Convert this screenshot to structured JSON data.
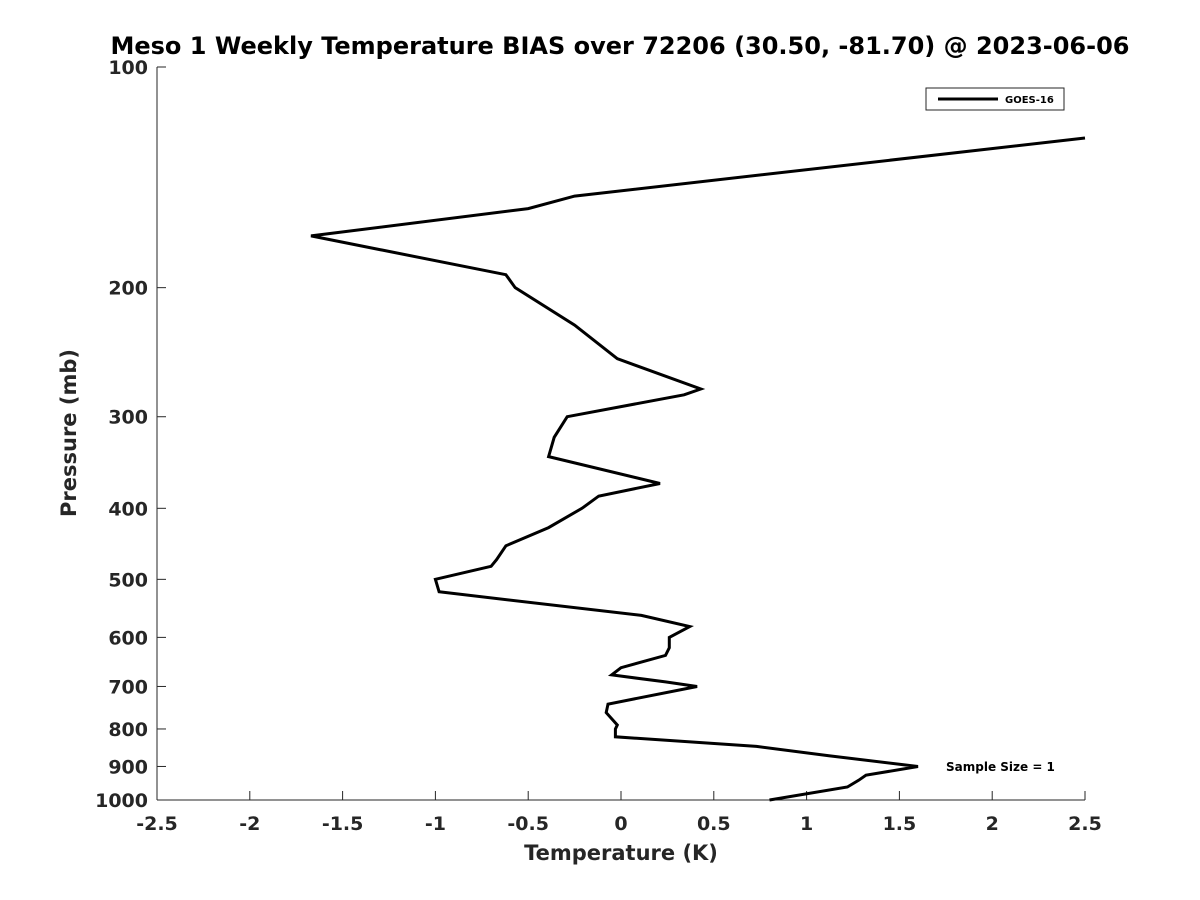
{
  "chart_data": {
    "type": "line",
    "title": "Meso 1 Weekly Temperature BIAS over 72206 (30.50, -81.70) @ 2023-06-06",
    "xlabel": "Temperature (K)",
    "ylabel": "Pressure (mb)",
    "xlim": [
      -2.5,
      2.5
    ],
    "ylim": [
      100,
      1000
    ],
    "yscale": "log",
    "yreversed": true,
    "x_ticks": [
      "-2.5",
      "-2",
      "-1.5",
      "-1",
      "-0.5",
      "0",
      "0.5",
      "1",
      "1.5",
      "2",
      "2.5"
    ],
    "y_ticks": [
      "100",
      "200",
      "300",
      "400",
      "500",
      "600",
      "700",
      "800",
      "900",
      "1000"
    ],
    "grid": false,
    "legend_position": "top-right",
    "annotation": "Sample Size = 1",
    "series": [
      {
        "name": "GOES-16",
        "color": "#000000",
        "points": [
          [
            2.5,
            125
          ],
          [
            -0.25,
            150
          ],
          [
            -0.5,
            156
          ],
          [
            -1.67,
            170
          ],
          [
            -0.62,
            192
          ],
          [
            -0.57,
            200
          ],
          [
            -0.25,
            225
          ],
          [
            -0.02,
            250
          ],
          [
            0.43,
            275
          ],
          [
            0.34,
            280
          ],
          [
            -0.29,
            300
          ],
          [
            -0.36,
            320
          ],
          [
            -0.39,
            340
          ],
          [
            0.21,
            370
          ],
          [
            -0.12,
            385
          ],
          [
            -0.21,
            400
          ],
          [
            -0.39,
            425
          ],
          [
            -0.62,
            450
          ],
          [
            -0.67,
            470
          ],
          [
            -0.7,
            480
          ],
          [
            -1.0,
            500
          ],
          [
            -0.98,
            520
          ],
          [
            0.11,
            560
          ],
          [
            0.37,
            580
          ],
          [
            0.26,
            600
          ],
          [
            0.26,
            620
          ],
          [
            0.24,
            635
          ],
          [
            0.0,
            660
          ],
          [
            -0.05,
            675
          ],
          [
            0.24,
            690
          ],
          [
            0.41,
            700
          ],
          [
            -0.07,
            740
          ],
          [
            -0.08,
            760
          ],
          [
            -0.02,
            790
          ],
          [
            -0.03,
            800
          ],
          [
            -0.03,
            820
          ],
          [
            0.73,
            845
          ],
          [
            1.12,
            870
          ],
          [
            1.6,
            900
          ],
          [
            1.32,
            925
          ],
          [
            1.28,
            940
          ],
          [
            1.22,
            960
          ],
          [
            0.8,
            1000
          ]
        ]
      }
    ]
  }
}
